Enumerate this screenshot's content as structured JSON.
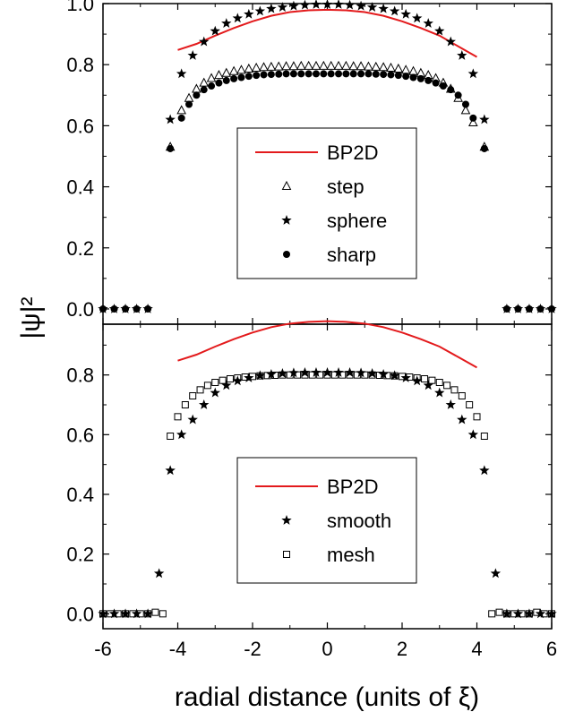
{
  "chart_data": [
    {
      "type": "scatter",
      "panel": "top",
      "ylabel": "|ψ|²",
      "xlim": [
        -6,
        6
      ],
      "ylim": [
        -0.05,
        1.0
      ],
      "yticks": [
        "0.0",
        "0.2",
        "0.4",
        "0.6",
        "0.8",
        "1.0"
      ],
      "legend_placement": "center",
      "series": [
        {
          "name": "BP2D",
          "marker": "line",
          "color": "#e31a1c",
          "x": [
            -4,
            -3.5,
            -3,
            -2.5,
            -2,
            -1.5,
            -1,
            -0.5,
            0,
            0.5,
            1,
            1.5,
            2,
            2.5,
            3,
            3.5,
            4
          ],
          "y": [
            0.848,
            0.868,
            0.895,
            0.92,
            0.942,
            0.96,
            0.972,
            0.978,
            0.98,
            0.978,
            0.972,
            0.96,
            0.942,
            0.92,
            0.895,
            0.86,
            0.825
          ]
        },
        {
          "name": "step",
          "marker": "triangle-open",
          "color": "#000000",
          "x": [
            -4.2,
            -3.9,
            -3.7,
            -3.5,
            -3.3,
            -3.1,
            -2.9,
            -2.7,
            -2.5,
            -2.3,
            -2.1,
            -1.9,
            -1.7,
            -1.5,
            -1.3,
            -1.1,
            -0.9,
            -0.7,
            -0.5,
            -0.3,
            -0.1,
            0.1,
            0.3,
            0.5,
            0.7,
            0.9,
            1.1,
            1.3,
            1.5,
            1.7,
            1.9,
            2.1,
            2.3,
            2.5,
            2.7,
            2.9,
            3.1,
            3.3,
            3.5,
            3.7,
            3.9,
            4.2
          ],
          "y": [
            0.53,
            0.65,
            0.69,
            0.72,
            0.74,
            0.755,
            0.765,
            0.772,
            0.778,
            0.782,
            0.786,
            0.789,
            0.791,
            0.792,
            0.793,
            0.794,
            0.794,
            0.795,
            0.795,
            0.795,
            0.795,
            0.795,
            0.795,
            0.795,
            0.794,
            0.794,
            0.793,
            0.792,
            0.791,
            0.789,
            0.786,
            0.782,
            0.778,
            0.772,
            0.765,
            0.755,
            0.74,
            0.72,
            0.69,
            0.65,
            0.61,
            0.53
          ]
        },
        {
          "name": "sphere",
          "marker": "star",
          "color": "#000000",
          "x": [
            -6,
            -5.7,
            -5.4,
            -5.1,
            -4.8,
            -4.2,
            -3.9,
            -3.6,
            -3.3,
            -3.0,
            -2.7,
            -2.4,
            -2.1,
            -1.8,
            -1.5,
            -1.2,
            -0.9,
            -0.6,
            -0.3,
            0,
            0.3,
            0.6,
            0.9,
            1.2,
            1.5,
            1.8,
            2.1,
            2.4,
            2.7,
            3.0,
            3.3,
            3.6,
            3.9,
            4.2,
            4.8,
            5.1,
            5.4,
            5.7,
            6
          ],
          "y": [
            0.0,
            0.0,
            0.0,
            0.0,
            0.0,
            0.62,
            0.77,
            0.83,
            0.875,
            0.91,
            0.935,
            0.952,
            0.965,
            0.975,
            0.983,
            0.988,
            0.992,
            0.995,
            0.997,
            0.997,
            0.997,
            0.995,
            0.992,
            0.988,
            0.983,
            0.975,
            0.965,
            0.952,
            0.935,
            0.91,
            0.875,
            0.83,
            0.77,
            0.62,
            0.0,
            0.0,
            0.0,
            0.0,
            0.0
          ]
        },
        {
          "name": "sharp",
          "marker": "circle-filled",
          "color": "#000000",
          "x": [
            -6,
            -5.7,
            -5.4,
            -5.1,
            -4.8,
            -4.2,
            -3.9,
            -3.7,
            -3.5,
            -3.3,
            -3.1,
            -2.9,
            -2.7,
            -2.5,
            -2.3,
            -2.1,
            -1.9,
            -1.7,
            -1.5,
            -1.3,
            -1.1,
            -0.9,
            -0.7,
            -0.5,
            -0.3,
            -0.1,
            0.1,
            0.3,
            0.5,
            0.7,
            0.9,
            1.1,
            1.3,
            1.5,
            1.7,
            1.9,
            2.1,
            2.3,
            2.5,
            2.7,
            2.9,
            3.1,
            3.3,
            3.5,
            3.7,
            3.9,
            4.2,
            4.8,
            5.1,
            5.4,
            5.7,
            6
          ],
          "y": [
            0.0,
            0.0,
            0.0,
            0.0,
            0.0,
            0.525,
            0.625,
            0.67,
            0.7,
            0.718,
            0.73,
            0.74,
            0.748,
            0.754,
            0.758,
            0.762,
            0.765,
            0.767,
            0.768,
            0.769,
            0.77,
            0.77,
            0.77,
            0.77,
            0.77,
            0.77,
            0.77,
            0.77,
            0.77,
            0.77,
            0.77,
            0.77,
            0.769,
            0.768,
            0.767,
            0.765,
            0.762,
            0.758,
            0.754,
            0.748,
            0.74,
            0.73,
            0.718,
            0.7,
            0.67,
            0.625,
            0.525,
            0.0,
            0.0,
            0.0,
            0.0,
            0.0
          ]
        }
      ]
    },
    {
      "type": "scatter",
      "panel": "bottom",
      "xlabel": "radial distance (units of ξ)",
      "xlim": [
        -6,
        6
      ],
      "ylim": [
        -0.05,
        0.97
      ],
      "xticks": [
        "-6",
        "-4",
        "-2",
        "0",
        "2",
        "4",
        "6"
      ],
      "yticks": [
        "0.0",
        "0.2",
        "0.4",
        "0.6",
        "0.8"
      ],
      "legend_placement": "lower center",
      "series": [
        {
          "name": "BP2D",
          "marker": "line",
          "color": "#e31a1c",
          "x": [
            -4,
            -3.5,
            -3,
            -2.5,
            -2,
            -1.5,
            -1,
            -0.5,
            0,
            0.5,
            1,
            1.5,
            2,
            2.5,
            3,
            3.5,
            4
          ],
          "y": [
            0.848,
            0.868,
            0.895,
            0.92,
            0.942,
            0.96,
            0.972,
            0.978,
            0.98,
            0.978,
            0.972,
            0.96,
            0.942,
            0.92,
            0.895,
            0.86,
            0.825
          ]
        },
        {
          "name": "smooth",
          "marker": "star",
          "color": "#000000",
          "x": [
            -6,
            -5.7,
            -5.4,
            -5.1,
            -4.8,
            -4.5,
            -4.2,
            -3.9,
            -3.6,
            -3.3,
            -3.0,
            -2.7,
            -2.4,
            -2.1,
            -1.8,
            -1.5,
            -1.2,
            -0.9,
            -0.6,
            -0.3,
            0,
            0.3,
            0.6,
            0.9,
            1.2,
            1.5,
            1.8,
            2.1,
            2.4,
            2.7,
            3.0,
            3.3,
            3.6,
            3.9,
            4.2,
            4.5,
            4.8,
            5.1,
            5.4,
            5.7,
            6
          ],
          "y": [
            0.0,
            0.0,
            0.0,
            0.0,
            0.0,
            0.135,
            0.48,
            0.6,
            0.65,
            0.7,
            0.74,
            0.765,
            0.78,
            0.79,
            0.798,
            0.802,
            0.805,
            0.807,
            0.808,
            0.808,
            0.808,
            0.808,
            0.808,
            0.807,
            0.805,
            0.802,
            0.798,
            0.79,
            0.78,
            0.765,
            0.74,
            0.7,
            0.65,
            0.6,
            0.48,
            0.135,
            0.0,
            0.0,
            0.0,
            0.0,
            0.0
          ]
        },
        {
          "name": "mesh",
          "marker": "square-open",
          "color": "#000000",
          "x": [
            -6,
            -5.8,
            -5.6,
            -5.4,
            -5.2,
            -5.0,
            -4.8,
            -4.6,
            -4.4,
            -4.2,
            -4.0,
            -3.8,
            -3.6,
            -3.4,
            -3.2,
            -3.0,
            -2.8,
            -2.6,
            -2.4,
            -2.2,
            -2.0,
            -1.8,
            -1.6,
            -1.4,
            -1.2,
            -1.0,
            -0.8,
            -0.6,
            -0.4,
            -0.2,
            0,
            0.2,
            0.4,
            0.6,
            0.8,
            1.0,
            1.2,
            1.4,
            1.6,
            1.8,
            2.0,
            2.2,
            2.4,
            2.6,
            2.8,
            3.0,
            3.2,
            3.4,
            3.6,
            3.8,
            4.0,
            4.2,
            4.4,
            4.6,
            4.8,
            5.0,
            5.2,
            5.4,
            5.6,
            5.8,
            6
          ],
          "y": [
            0.0,
            0.0,
            0.0,
            0.0,
            0.0,
            0.0,
            0.0,
            0.005,
            0.0,
            0.595,
            0.66,
            0.7,
            0.73,
            0.75,
            0.765,
            0.775,
            0.782,
            0.787,
            0.79,
            0.793,
            0.795,
            0.797,
            0.798,
            0.799,
            0.8,
            0.8,
            0.8,
            0.8,
            0.8,
            0.8,
            0.8,
            0.8,
            0.8,
            0.8,
            0.8,
            0.8,
            0.8,
            0.799,
            0.798,
            0.797,
            0.795,
            0.793,
            0.79,
            0.787,
            0.782,
            0.775,
            0.765,
            0.75,
            0.73,
            0.7,
            0.66,
            0.595,
            0.0,
            0.005,
            0.0,
            0.0,
            0.0,
            0.0,
            0.005,
            0.0,
            0.0
          ]
        }
      ]
    }
  ]
}
